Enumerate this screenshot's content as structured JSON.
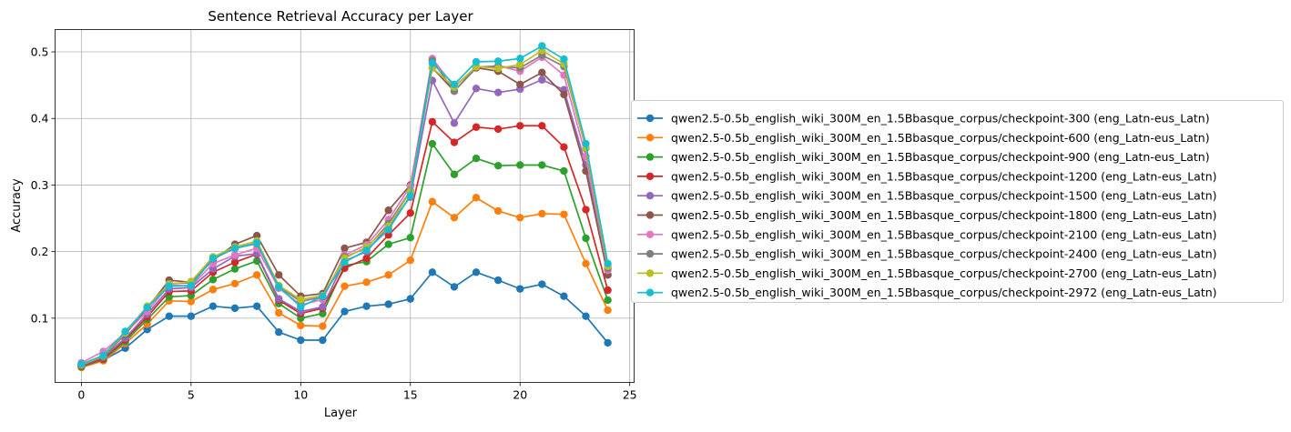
{
  "chart_data": {
    "type": "line",
    "title": "Sentence Retrieval Accuracy per Layer",
    "xlabel": "Layer",
    "ylabel": "Accuracy",
    "xlim": [
      -1.2,
      25.2
    ],
    "ylim": [
      0.0035,
      0.5335
    ],
    "xticks": [
      0,
      5,
      10,
      15,
      20,
      25
    ],
    "yticks": [
      0.1,
      0.2,
      0.3,
      0.4,
      0.5
    ],
    "ytick_labels": [
      "0.1",
      "0.2",
      "0.3",
      "0.4",
      "0.5"
    ],
    "grid": true,
    "legend_placement": "right, outside",
    "marker": "circle",
    "x": [
      0,
      1,
      2,
      3,
      4,
      5,
      6,
      7,
      8,
      9,
      10,
      11,
      12,
      13,
      14,
      15,
      16,
      17,
      18,
      19,
      20,
      21,
      22,
      23,
      24
    ],
    "series": [
      {
        "name": "qwen2.5-0.5b_english_wiki_300M_en_1.5Bbasque_corpus/checkpoint-300 (eng_Latn-eus_Latn)",
        "color": "#1f77b4",
        "values": [
          0.028,
          0.037,
          0.055,
          0.083,
          0.103,
          0.103,
          0.118,
          0.115,
          0.118,
          0.079,
          0.067,
          0.067,
          0.11,
          0.118,
          0.121,
          0.129,
          0.169,
          0.147,
          0.169,
          0.157,
          0.144,
          0.151,
          0.133,
          0.103,
          0.063
        ]
      },
      {
        "name": "qwen2.5-0.5b_english_wiki_300M_en_1.5Bbasque_corpus/checkpoint-600 (eng_Latn-eus_Latn)",
        "color": "#ff7f0e",
        "values": [
          0.026,
          0.036,
          0.062,
          0.091,
          0.126,
          0.125,
          0.143,
          0.152,
          0.165,
          0.108,
          0.089,
          0.088,
          0.148,
          0.154,
          0.165,
          0.187,
          0.275,
          0.251,
          0.281,
          0.261,
          0.251,
          0.257,
          0.256,
          0.182,
          0.112
        ]
      },
      {
        "name": "qwen2.5-0.5b_english_wiki_300M_en_1.5Bbasque_corpus/checkpoint-900 (eng_Latn-eus_Latn)",
        "color": "#2ca02c",
        "values": [
          0.027,
          0.038,
          0.065,
          0.098,
          0.132,
          0.134,
          0.158,
          0.174,
          0.186,
          0.122,
          0.1,
          0.107,
          0.179,
          0.185,
          0.211,
          0.221,
          0.362,
          0.316,
          0.34,
          0.329,
          0.33,
          0.33,
          0.321,
          0.22,
          0.127
        ]
      },
      {
        "name": "qwen2.5-0.5b_english_wiki_300M_en_1.5Bbasque_corpus/checkpoint-1200 (eng_Latn-eus_Latn)",
        "color": "#d62728",
        "values": [
          0.028,
          0.039,
          0.068,
          0.102,
          0.14,
          0.141,
          0.169,
          0.184,
          0.196,
          0.127,
          0.107,
          0.115,
          0.175,
          0.19,
          0.225,
          0.258,
          0.395,
          0.364,
          0.387,
          0.384,
          0.389,
          0.389,
          0.357,
          0.263,
          0.142
        ]
      },
      {
        "name": "qwen2.5-0.5b_english_wiki_300M_en_1.5Bbasque_corpus/checkpoint-1500 (eng_Latn-eus_Latn)",
        "color": "#9467bd",
        "values": [
          0.029,
          0.041,
          0.07,
          0.106,
          0.144,
          0.146,
          0.174,
          0.193,
          0.197,
          0.129,
          0.11,
          0.117,
          0.186,
          0.2,
          0.238,
          0.282,
          0.457,
          0.393,
          0.445,
          0.439,
          0.444,
          0.458,
          0.443,
          0.33,
          0.165
        ]
      },
      {
        "name": "qwen2.5-0.5b_english_wiki_300M_en_1.5Bbasque_corpus/checkpoint-1800 (eng_Latn-eus_Latn)",
        "color": "#8c564b",
        "values": [
          0.03,
          0.042,
          0.076,
          0.115,
          0.157,
          0.154,
          0.187,
          0.211,
          0.224,
          0.165,
          0.133,
          0.137,
          0.205,
          0.214,
          0.262,
          0.3,
          0.476,
          0.441,
          0.476,
          0.471,
          0.451,
          0.469,
          0.436,
          0.321,
          0.165
        ]
      },
      {
        "name": "qwen2.5-0.5b_english_wiki_300M_en_1.5Bbasque_corpus/checkpoint-2100 (eng_Latn-eus_Latn)",
        "color": "#e377c2",
        "values": [
          0.033,
          0.05,
          0.078,
          0.11,
          0.15,
          0.148,
          0.182,
          0.195,
          0.205,
          0.145,
          0.12,
          0.128,
          0.195,
          0.21,
          0.248,
          0.298,
          0.49,
          0.448,
          0.477,
          0.479,
          0.471,
          0.492,
          0.465,
          0.343,
          0.172
        ]
      },
      {
        "name": "qwen2.5-0.5b_english_wiki_300M_en_1.5Bbasque_corpus/checkpoint-2400 (eng_Latn-eus_Latn)",
        "color": "#7f7f7f",
        "values": [
          0.031,
          0.043,
          0.077,
          0.116,
          0.152,
          0.153,
          0.189,
          0.205,
          0.212,
          0.147,
          0.125,
          0.132,
          0.192,
          0.205,
          0.242,
          0.291,
          0.487,
          0.441,
          0.477,
          0.478,
          0.476,
          0.495,
          0.478,
          0.355,
          0.175
        ]
      },
      {
        "name": "qwen2.5-0.5b_english_wiki_300M_en_1.5Bbasque_corpus/checkpoint-2700 (eng_Latn-eus_Latn)",
        "color": "#bcbd22",
        "values": [
          0.03,
          0.043,
          0.078,
          0.118,
          0.151,
          0.155,
          0.192,
          0.207,
          0.216,
          0.149,
          0.128,
          0.134,
          0.19,
          0.207,
          0.238,
          0.29,
          0.476,
          0.447,
          0.478,
          0.475,
          0.481,
          0.502,
          0.482,
          0.356,
          0.178
        ]
      },
      {
        "name": "qwen2.5-0.5b_english_wiki_300M_en_1.5Bbasque_corpus/checkpoint-2972 (eng_Latn-eus_Latn)",
        "color": "#17becf",
        "values": [
          0.031,
          0.044,
          0.08,
          0.116,
          0.148,
          0.149,
          0.19,
          0.205,
          0.213,
          0.147,
          0.117,
          0.133,
          0.184,
          0.202,
          0.233,
          0.284,
          0.483,
          0.451,
          0.485,
          0.486,
          0.49,
          0.509,
          0.489,
          0.362,
          0.182
        ]
      }
    ]
  }
}
